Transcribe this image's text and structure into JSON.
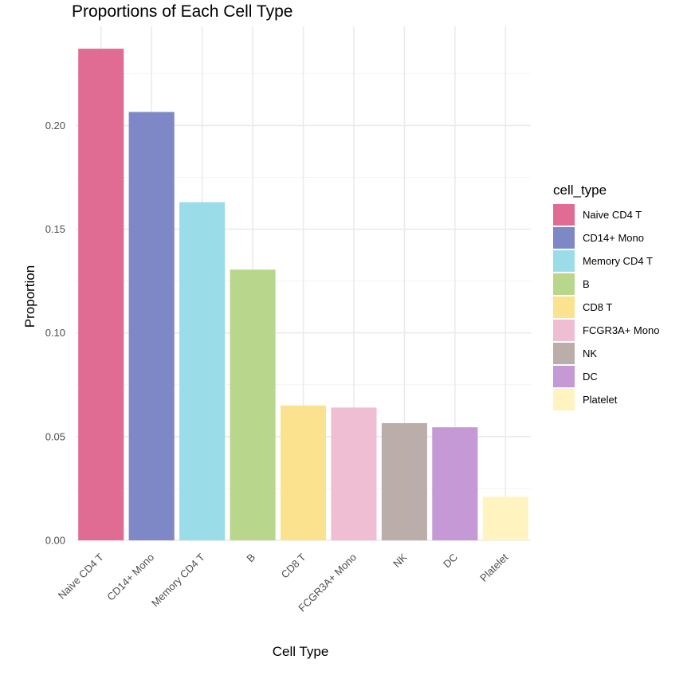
{
  "chart_data": {
    "type": "bar",
    "title": "Proportions of Each Cell Type",
    "xlabel": "Cell Type",
    "ylabel": "Proportion",
    "ylim": [
      0,
      0.2478
    ],
    "yticks": [
      0.0,
      0.05,
      0.1,
      0.15,
      0.2
    ],
    "ytick_labels": [
      "0.00",
      "0.05",
      "0.10",
      "0.15",
      "0.20"
    ],
    "grid": true,
    "legend_title": "cell_type",
    "legend_position": "right",
    "categories": [
      "Naive CD4 T",
      "CD14+ Mono",
      "Memory CD4 T",
      "B",
      "CD8 T",
      "FCGR3A+ Mono",
      "NK",
      "DC",
      "Platelet"
    ],
    "values": [
      0.237,
      0.2065,
      0.163,
      0.1305,
      0.065,
      0.064,
      0.0565,
      0.0545,
      0.021
    ],
    "colors": [
      "#E06C94",
      "#7F88C7",
      "#9ADDE8",
      "#B8D68C",
      "#FAE28F",
      "#F0BED2",
      "#BBAEAA",
      "#C599D6",
      "#FFF4C0"
    ]
  }
}
